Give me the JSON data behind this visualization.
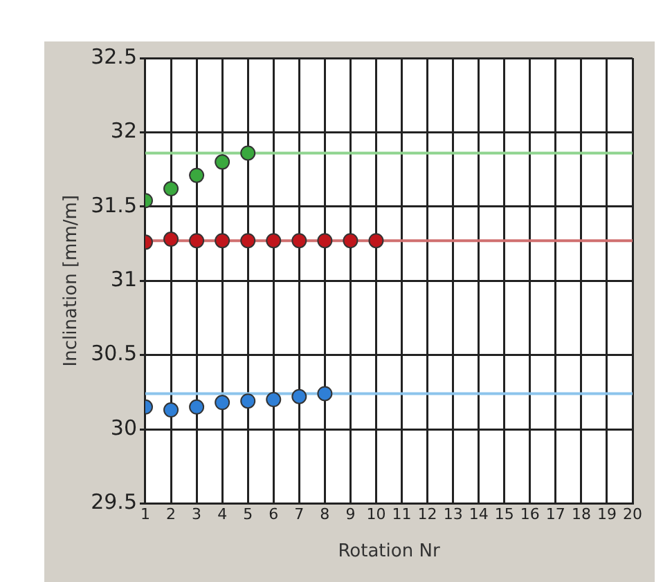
{
  "chart_data": {
    "type": "scatter",
    "xlabel": "Rotation Nr",
    "ylabel": "Inclination [mm/m]",
    "xlim": [
      1,
      20
    ],
    "xticks": [
      1,
      2,
      3,
      4,
      5,
      6,
      7,
      8,
      9,
      10,
      11,
      12,
      13,
      14,
      15,
      16,
      17,
      18,
      19,
      20
    ],
    "ylim": [
      29.5,
      32.5
    ],
    "yticks": [
      29.5,
      30,
      30.5,
      31,
      31.5,
      32,
      32.5
    ],
    "grid": true,
    "legend": false,
    "marker": "circle",
    "series": [
      {
        "color": "#3aa83e",
        "x": [
          1,
          2,
          3,
          4,
          5
        ],
        "values": [
          31.54,
          31.62,
          31.71,
          31.8,
          31.86
        ]
      },
      {
        "color": "#c0161c",
        "x": [
          1,
          2,
          3,
          4,
          5,
          6,
          7,
          8,
          9,
          10
        ],
        "values": [
          31.26,
          31.28,
          31.27,
          31.27,
          31.27,
          31.27,
          31.27,
          31.27,
          31.27,
          31.27
        ]
      },
      {
        "color": "#2f7fd6",
        "x": [
          1,
          2,
          3,
          4,
          5,
          6,
          7,
          8
        ],
        "values": [
          30.15,
          30.13,
          30.15,
          30.18,
          30.19,
          30.2,
          30.22,
          30.24
        ]
      }
    ],
    "ref_lines": [
      {
        "axis": "y",
        "value": 31.86,
        "color": "#8fd48f"
      },
      {
        "axis": "y",
        "value": 31.27,
        "color": "#d07070"
      },
      {
        "axis": "y",
        "value": 30.24,
        "color": "#8cc4ec"
      }
    ]
  }
}
